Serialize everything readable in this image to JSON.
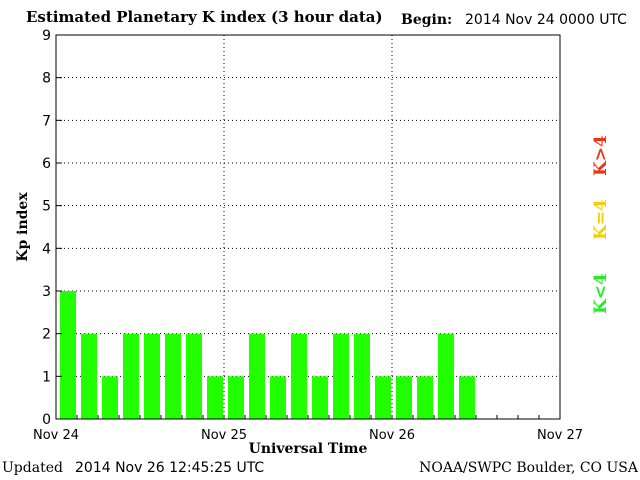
{
  "header": {
    "title": "Estimated Planetary K index (3 hour data)",
    "begin_label": "Begin:",
    "begin_value": "2014 Nov 24 0000 UTC"
  },
  "footer": {
    "updated_label": "Updated",
    "updated_value": "2014 Nov 26 12:45:25 UTC",
    "credit": "NOAA/SWPC Boulder, CO USA"
  },
  "legend": {
    "k_below": {
      "label": "K<4",
      "color": "#22ee22"
    },
    "k_equal": {
      "label": "K=4",
      "color": "#f5d000"
    },
    "k_above": {
      "label": "K>4",
      "color": "#ee3311"
    }
  },
  "chart_data": {
    "type": "bar",
    "xlabel": "Universal Time",
    "ylabel": "Kp index",
    "ylim": [
      0,
      9
    ],
    "yticks": [
      0,
      1,
      2,
      3,
      4,
      5,
      6,
      7,
      8,
      9
    ],
    "xticks": [
      "Nov 24",
      "Nov 25",
      "Nov 26",
      "Nov 27"
    ],
    "bins_per_day": 8,
    "total_bins": 24,
    "grid": true,
    "bar_color": "#22ff00",
    "series": [
      {
        "values": [
          3,
          2,
          1,
          2,
          2,
          2,
          2,
          1,
          1,
          2,
          1,
          2,
          1,
          2,
          2,
          1,
          1,
          1,
          2,
          1
        ]
      }
    ]
  }
}
